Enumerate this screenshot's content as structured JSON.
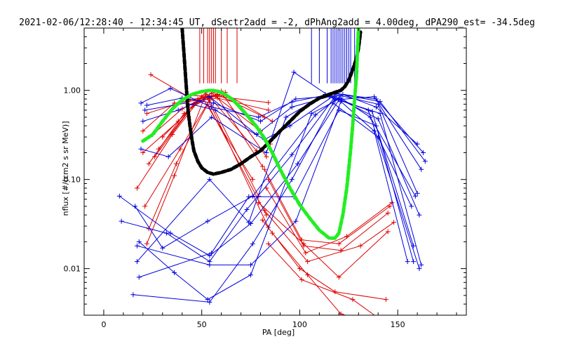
{
  "chart_data": {
    "type": "scatter",
    "title": "2021-02-06/12:28:40 - 12:34:45 UT, dSectr2add = -2, dPhAng2add = 4.00deg, dPA290_est= -34.5deg",
    "xlabel": "PA [deg]",
    "ylabel": "nflux [#/(cm2 s sr MeV)]",
    "xlim": [
      -10,
      185
    ],
    "ylim": [
      0.003,
      5.0
    ],
    "yscale": "log",
    "grid": false,
    "xticks": [
      0,
      50,
      100,
      150
    ],
    "xtick_labels": [
      "0",
      "50",
      "100",
      "150"
    ],
    "yticks": [
      0.01,
      0.1,
      1.0
    ],
    "ytick_labels": [
      "0.01",
      "0.10",
      "1.00"
    ],
    "colors": {
      "red_series": "#dd0000",
      "blue_series": "#0000dd",
      "black_curve": "#000000",
      "green_curve": "#22ee22",
      "axes": "#000000"
    },
    "vertical_markers": {
      "red_pa": [
        49,
        51,
        53,
        54,
        55,
        56,
        57,
        60,
        63,
        68
      ],
      "red_top": 5.0,
      "red_bottom": 1.2,
      "blue_pa": [
        106,
        110,
        114,
        116,
        117,
        118,
        119,
        120,
        121,
        122,
        123,
        124,
        125,
        126,
        128
      ],
      "blue_top": 5.0,
      "blue_bottom": 1.2
    },
    "series": [
      {
        "color": "red",
        "points": [
          [
            24,
            1.5
          ],
          [
            42,
            0.88
          ],
          [
            57,
            0.86
          ],
          [
            84,
            0.73
          ]
        ]
      },
      {
        "color": "red",
        "points": [
          [
            22,
            0.55
          ],
          [
            44,
            0.78
          ],
          [
            58,
            0.9
          ],
          [
            82,
            0.5
          ]
        ]
      },
      {
        "color": "red",
        "points": [
          [
            25,
            0.32
          ],
          [
            40,
            0.62
          ],
          [
            55,
            0.93
          ],
          [
            80,
            0.35
          ]
        ]
      },
      {
        "color": "red",
        "points": [
          [
            20,
            0.2
          ],
          [
            38,
            0.45
          ],
          [
            52,
            0.95
          ],
          [
            78,
            0.21
          ]
        ]
      },
      {
        "color": "red",
        "points": [
          [
            23,
            0.15
          ],
          [
            41,
            0.55
          ],
          [
            56,
            0.98
          ],
          [
            81,
            0.14
          ]
        ]
      },
      {
        "color": "red",
        "points": [
          [
            17,
            0.08
          ],
          [
            35,
            0.32
          ],
          [
            50,
            0.85
          ],
          [
            76,
            0.1
          ]
        ]
      },
      {
        "color": "red",
        "points": [
          [
            21,
            0.05
          ],
          [
            39,
            0.22
          ],
          [
            54,
            0.78
          ],
          [
            79,
            0.065
          ]
        ]
      },
      {
        "color": "red",
        "points": [
          [
            23,
            0.028
          ],
          [
            37,
            0.15
          ],
          [
            53,
            0.7
          ],
          [
            83,
            0.04
          ]
        ]
      },
      {
        "color": "red",
        "points": [
          [
            22,
            0.019
          ],
          [
            36,
            0.11
          ],
          [
            52,
            0.9
          ],
          [
            84,
            0.029
          ]
        ]
      },
      {
        "color": "red",
        "points": [
          [
            30,
            0.3
          ],
          [
            45,
            0.65
          ],
          [
            60,
            0.98
          ],
          [
            86,
            0.45
          ]
        ]
      },
      {
        "color": "red",
        "points": [
          [
            28,
            0.22
          ],
          [
            46,
            0.7
          ],
          [
            62,
            0.95
          ],
          [
            85,
            0.25
          ]
        ]
      },
      {
        "color": "red",
        "points": [
          [
            26,
            0.18
          ],
          [
            48,
            0.8
          ],
          [
            61,
            0.88
          ],
          [
            83,
            0.18
          ]
        ]
      },
      {
        "color": "red",
        "points": [
          [
            20,
            0.35
          ],
          [
            36,
            0.72
          ],
          [
            58,
            0.82
          ],
          [
            84,
            0.6
          ]
        ]
      },
      {
        "color": "red",
        "points": [
          [
            82,
            0.13
          ],
          [
            101,
            0.021
          ],
          [
            120,
            0.019
          ],
          [
            146,
            0.05
          ]
        ]
      },
      {
        "color": "red",
        "points": [
          [
            84,
            0.1
          ],
          [
            102,
            0.018
          ],
          [
            121,
            0.016
          ],
          [
            145,
            0.042
          ]
        ]
      },
      {
        "color": "red",
        "points": [
          [
            83,
            0.08
          ],
          [
            103,
            0.015
          ],
          [
            124,
            0.023
          ],
          [
            147,
            0.055
          ]
        ]
      },
      {
        "color": "red",
        "points": [
          [
            82,
            0.045
          ],
          [
            104,
            0.012
          ],
          [
            131,
            0.018
          ],
          [
            148,
            0.033
          ]
        ]
      },
      {
        "color": "red",
        "points": [
          [
            79,
            0.055
          ],
          [
            102,
            0.019
          ],
          [
            120,
            0.008
          ],
          [
            145,
            0.026
          ]
        ]
      },
      {
        "color": "red",
        "points": [
          [
            81,
            0.035
          ],
          [
            100,
            0.01
          ],
          [
            118,
            0.0055
          ],
          [
            144,
            0.0045
          ]
        ]
      },
      {
        "color": "red",
        "points": [
          [
            86,
            0.025
          ],
          [
            104,
            0.0085
          ],
          [
            121,
            0.0031
          ],
          [
            137,
            0.0025
          ]
        ]
      },
      {
        "color": "red",
        "points": [
          [
            84,
            0.019
          ],
          [
            101,
            0.0075
          ],
          [
            127,
            0.0045
          ],
          [
            140,
            0.0028
          ]
        ]
      },
      {
        "color": "blue",
        "points": [
          [
            19,
            0.72
          ],
          [
            34,
            1.05
          ],
          [
            55,
            0.65
          ],
          [
            79,
            0.5
          ],
          [
            96,
            0.74
          ],
          [
            118,
            0.93
          ],
          [
            141,
            0.75
          ],
          [
            164,
            0.16
          ]
        ]
      },
      {
        "color": "blue",
        "points": [
          [
            22,
            0.68
          ],
          [
            40,
            0.82
          ],
          [
            56,
            0.72
          ],
          [
            80,
            0.45
          ],
          [
            98,
            0.8
          ],
          [
            120,
            0.88
          ],
          [
            140,
            0.7
          ],
          [
            160,
            0.07
          ]
        ]
      },
      {
        "color": "blue",
        "points": [
          [
            20,
            0.45
          ],
          [
            38,
            0.6
          ],
          [
            54,
            0.85
          ],
          [
            78,
            0.32
          ],
          [
            96,
            0.65
          ],
          [
            115,
            0.85
          ],
          [
            137,
            0.58
          ],
          [
            158,
            0.012
          ]
        ]
      },
      {
        "color": "blue",
        "points": [
          [
            19,
            0.22
          ],
          [
            33,
            0.18
          ],
          [
            55,
            0.5
          ],
          [
            83,
            0.2
          ],
          [
            97,
            1.6
          ],
          [
            118,
            0.78
          ],
          [
            138,
            0.85
          ],
          [
            162,
            0.13
          ]
        ]
      },
      {
        "color": "blue",
        "points": [
          [
            16,
            0.05
          ],
          [
            30,
            0.017
          ],
          [
            53,
            0.034
          ],
          [
            76,
            0.065
          ],
          [
            108,
            0.53
          ],
          [
            122,
            0.9
          ],
          [
            139,
            0.65
          ],
          [
            160,
            0.25
          ]
        ]
      },
      {
        "color": "blue",
        "points": [
          [
            18,
            0.02
          ],
          [
            36,
            0.009
          ],
          [
            53,
            0.0045
          ],
          [
            75,
            0.0085
          ],
          [
            106,
            0.55
          ],
          [
            121,
            0.82
          ],
          [
            136,
            0.5
          ],
          [
            159,
            0.065
          ]
        ]
      },
      {
        "color": "blue",
        "points": [
          [
            8,
            0.065
          ],
          [
            34,
            0.025
          ],
          [
            54,
            0.014
          ],
          [
            75,
            0.032
          ],
          [
            99,
            0.15
          ],
          [
            120,
            0.78
          ],
          [
            141,
            0.55
          ],
          [
            162,
            0.011
          ]
        ]
      },
      {
        "color": "blue",
        "points": [
          [
            9,
            0.034
          ],
          [
            32,
            0.025
          ],
          [
            54,
            0.012
          ],
          [
            73,
            0.046
          ],
          [
            96,
            0.19
          ],
          [
            118,
            0.85
          ],
          [
            140,
            0.48
          ],
          [
            161,
            0.04
          ]
        ]
      },
      {
        "color": "blue",
        "points": [
          [
            17,
            0.018
          ],
          [
            54,
            0.011
          ],
          [
            75,
            0.011
          ],
          [
            98,
            0.034
          ],
          [
            121,
            0.75
          ],
          [
            138,
            0.35
          ],
          [
            155,
            0.012
          ]
        ]
      },
      {
        "color": "blue",
        "points": [
          [
            15,
            0.0051
          ],
          [
            54,
            0.0042
          ],
          [
            76,
            0.019
          ],
          [
            96,
            0.1
          ],
          [
            117,
            0.72
          ],
          [
            140,
            0.3
          ],
          [
            157,
            0.05
          ]
        ]
      },
      {
        "color": "blue",
        "points": [
          [
            17,
            0.012
          ],
          [
            54,
            0.1
          ],
          [
            74,
            0.033
          ],
          [
            93,
            0.5
          ],
          [
            113,
            0.9
          ],
          [
            135,
            0.6
          ],
          [
            161,
            0.01
          ]
        ]
      },
      {
        "color": "blue",
        "points": [
          [
            21,
            0.6
          ],
          [
            42,
            0.72
          ],
          [
            57,
            0.6
          ],
          [
            82,
            0.28
          ],
          [
            95,
            0.4
          ],
          [
            119,
            0.92
          ],
          [
            139,
            0.8
          ],
          [
            163,
            0.2
          ]
        ]
      },
      {
        "color": "blue",
        "points": [
          [
            18,
            0.008
          ],
          [
            55,
            0.015
          ],
          [
            74,
            0.064
          ],
          [
            97,
            0.064
          ],
          [
            120,
            0.6
          ],
          [
            139,
            0.4
          ],
          [
            158,
            0.018
          ]
        ]
      }
    ],
    "black_curve": {
      "style": "dashed",
      "points": [
        [
          40,
          5.0
        ],
        [
          41,
          2.5
        ],
        [
          42,
          1.2
        ],
        [
          43,
          0.6
        ],
        [
          44,
          0.4
        ],
        [
          45,
          0.28
        ],
        [
          46,
          0.21
        ],
        [
          48,
          0.16
        ],
        [
          50,
          0.135
        ],
        [
          53,
          0.12
        ],
        [
          56,
          0.115
        ],
        [
          60,
          0.12
        ],
        [
          65,
          0.13
        ],
        [
          70,
          0.15
        ],
        [
          75,
          0.18
        ],
        [
          80,
          0.21
        ],
        [
          85,
          0.27
        ],
        [
          90,
          0.35
        ],
        [
          95,
          0.45
        ],
        [
          100,
          0.58
        ],
        [
          105,
          0.7
        ],
        [
          110,
          0.82
        ],
        [
          115,
          0.9
        ],
        [
          118,
          0.95
        ],
        [
          121,
          1.0
        ],
        [
          123,
          1.1
        ],
        [
          125,
          1.3
        ],
        [
          127,
          1.7
        ],
        [
          129,
          2.3
        ],
        [
          130,
          3.0
        ],
        [
          131,
          4.5
        ]
      ]
    },
    "green_curve": {
      "style": "dashed",
      "points": [
        [
          20,
          0.27
        ],
        [
          25,
          0.32
        ],
        [
          30,
          0.45
        ],
        [
          35,
          0.62
        ],
        [
          40,
          0.78
        ],
        [
          45,
          0.9
        ],
        [
          50,
          0.97
        ],
        [
          54,
          1.0
        ],
        [
          58,
          0.98
        ],
        [
          62,
          0.9
        ],
        [
          66,
          0.78
        ],
        [
          70,
          0.63
        ],
        [
          74,
          0.5
        ],
        [
          78,
          0.39
        ],
        [
          82,
          0.29
        ],
        [
          86,
          0.2
        ],
        [
          90,
          0.13
        ],
        [
          95,
          0.08
        ],
        [
          100,
          0.052
        ],
        [
          105,
          0.037
        ],
        [
          110,
          0.027
        ],
        [
          115,
          0.022
        ],
        [
          118,
          0.022
        ],
        [
          120,
          0.025
        ],
        [
          122,
          0.04
        ],
        [
          124,
          0.08
        ],
        [
          125,
          0.13
        ],
        [
          126,
          0.22
        ],
        [
          127,
          0.4
        ],
        [
          128,
          0.8
        ],
        [
          129,
          1.5
        ],
        [
          129.5,
          3.0
        ],
        [
          130,
          5.0
        ]
      ]
    }
  }
}
